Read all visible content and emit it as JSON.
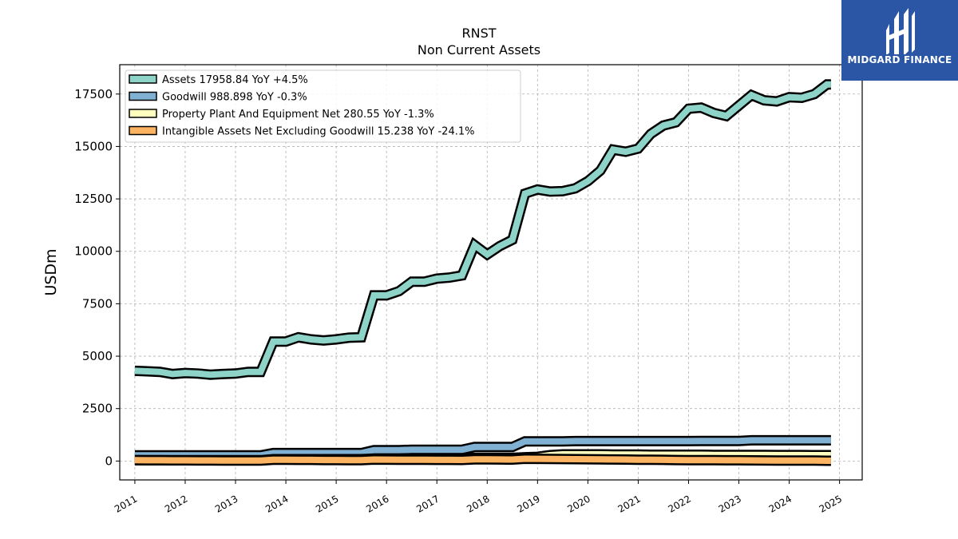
{
  "header": {
    "title": "RNST",
    "subtitle": "Non Current  Assets"
  },
  "logo": {
    "text": "MIDGARD FINANCE",
    "color": "#2a56a5"
  },
  "chart_data": {
    "type": "area",
    "ylabel": "USDm",
    "xlabel": "",
    "ylim": [
      -900,
      18900
    ],
    "xlim": [
      2010.7,
      2025.45
    ],
    "yticks": [
      0,
      2500,
      5000,
      7500,
      10000,
      12500,
      15000,
      17500
    ],
    "ytick_labels": [
      "0",
      "2500",
      "5000",
      "7500",
      "10000",
      "12500",
      "15000",
      "17500"
    ],
    "xticks": [
      2011,
      2012,
      2013,
      2014,
      2015,
      2016,
      2017,
      2018,
      2019,
      2020,
      2021,
      2022,
      2023,
      2024,
      2025
    ],
    "xtick_labels": [
      "2011",
      "2012",
      "2013",
      "2014",
      "2015",
      "2016",
      "2017",
      "2018",
      "2019",
      "2020",
      "2021",
      "2022",
      "2023",
      "2024",
      "2025"
    ],
    "grid": true,
    "legend_position": "top-left",
    "x": [
      2011.0,
      2011.25,
      2011.5,
      2011.75,
      2012.0,
      2012.25,
      2012.5,
      2012.75,
      2013.0,
      2013.25,
      2013.5,
      2013.75,
      2014.0,
      2014.25,
      2014.5,
      2014.75,
      2015.0,
      2015.25,
      2015.5,
      2015.75,
      2016.0,
      2016.25,
      2016.5,
      2016.75,
      2017.0,
      2017.25,
      2017.5,
      2017.75,
      2018.0,
      2018.25,
      2018.5,
      2018.75,
      2019.0,
      2019.25,
      2019.5,
      2019.75,
      2020.0,
      2020.25,
      2020.5,
      2020.75,
      2021.0,
      2021.25,
      2021.5,
      2021.75,
      2022.0,
      2022.25,
      2022.5,
      2022.75,
      2023.0,
      2023.25,
      2023.5,
      2023.75,
      2024.0,
      2024.25,
      2024.5,
      2024.75,
      2024.83
    ],
    "series": [
      {
        "name": "Assets  17958.84 YoY +4.5%",
        "color": "#8dd3c7",
        "values": [
          4300,
          4280,
          4250,
          4150,
          4200,
          4170,
          4120,
          4150,
          4170,
          4250,
          4250,
          5700,
          5700,
          5900,
          5800,
          5750,
          5800,
          5880,
          5900,
          7900,
          7900,
          8100,
          8550,
          8550,
          8700,
          8750,
          8850,
          10300,
          9850,
          10250,
          10550,
          12750,
          12950,
          12850,
          12870,
          13000,
          13350,
          13850,
          14850,
          14750,
          14900,
          15600,
          16000,
          16150,
          16800,
          16850,
          16600,
          16450,
          16950,
          17450,
          17200,
          17150,
          17350,
          17320,
          17500,
          17958.84,
          17958.84
        ]
      },
      {
        "name": "Goodwill  988.898 YoY -0.3%",
        "color": "#80b1d3",
        "values": [
          270,
          270,
          270,
          270,
          270,
          270,
          270,
          270,
          270,
          270,
          270,
          380,
          380,
          380,
          380,
          380,
          380,
          380,
          380,
          520,
          520,
          520,
          540,
          540,
          540,
          540,
          540,
          670,
          670,
          670,
          670,
          940,
          940,
          940,
          940,
          950,
          950,
          950,
          950,
          950,
          950,
          950,
          950,
          950,
          950,
          960,
          960,
          960,
          960,
          990,
          990,
          990,
          990,
          990,
          990,
          988.898,
          988.898
        ]
      },
      {
        "name": "Property Plant And Equipment Net  280.55 YoY -1.3%",
        "color": "#ffffbf",
        "values": [
          40,
          40,
          40,
          40,
          40,
          40,
          40,
          40,
          40,
          40,
          40,
          90,
          90,
          90,
          90,
          90,
          90,
          90,
          90,
          120,
          120,
          120,
          130,
          130,
          130,
          130,
          130,
          150,
          150,
          150,
          150,
          180,
          200,
          280,
          320,
          320,
          320,
          320,
          310,
          310,
          310,
          300,
          300,
          300,
          300,
          300,
          290,
          290,
          290,
          290,
          290,
          285,
          285,
          285,
          282,
          280.55,
          280.55
        ]
      },
      {
        "name": "Intangible Assets Net Excluding Goodwill  15.238 YoY -24.1%",
        "color": "#fdb462",
        "values": [
          40,
          38,
          36,
          34,
          32,
          30,
          28,
          26,
          24,
          22,
          20,
          60,
          58,
          56,
          54,
          50,
          48,
          46,
          44,
          70,
          68,
          65,
          60,
          58,
          56,
          54,
          52,
          80,
          78,
          75,
          70,
          110,
          105,
          100,
          95,
          90,
          85,
          80,
          75,
          70,
          65,
          60,
          55,
          50,
          45,
          42,
          40,
          38,
          35,
          32,
          30,
          27,
          24,
          22,
          20,
          15.238,
          15.238
        ]
      }
    ]
  }
}
